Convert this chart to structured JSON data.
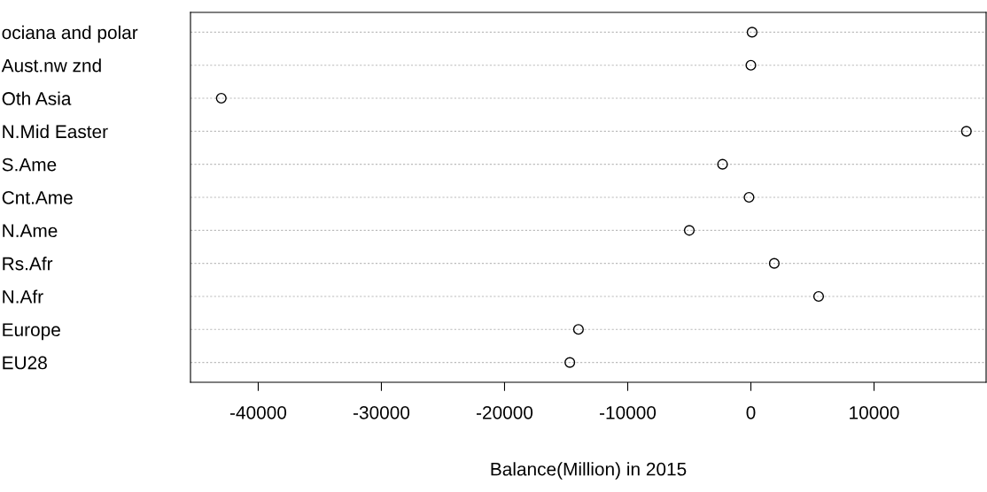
{
  "chart_data": {
    "type": "scatter",
    "orientation": "horizontal",
    "xlabel": "Balance(Million) in 2015",
    "categories": [
      "ociana and polar",
      "Aust.nw znd",
      "Oth Asia",
      "N.Mid Easter",
      "S.Ame",
      "Cnt.Ame",
      "N.Ame",
      "Rs.Afr",
      "N.Afr",
      "Europe",
      "EU28"
    ],
    "values": [
      100,
      0,
      -43000,
      17500,
      -2300,
      -150,
      -5000,
      1900,
      5500,
      -14000,
      -14700
    ],
    "color": "#000000",
    "marker": "circle",
    "grid": "y",
    "xlim": [
      -45500,
      19100
    ],
    "xticks": [
      -40000,
      -30000,
      -20000,
      -10000,
      0,
      10000
    ]
  }
}
